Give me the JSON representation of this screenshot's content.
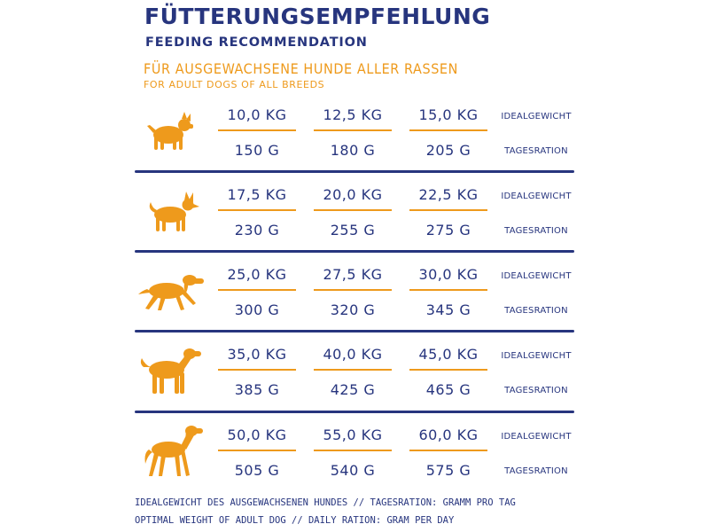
{
  "header": {
    "title": "FÜTTERUNGSEMPFEHLUNG",
    "subtitle": "FEEDING RECOMMENDATION",
    "intro_de": "FÜR AUSGEWACHSENE HUNDE ALLER RASSEN",
    "intro_en": "FOR ADULT DOGS OF ALL BREEDS"
  },
  "labels": {
    "weight": "IDEALGEWICHT",
    "ration": "TAGESRATION"
  },
  "colors": {
    "navy": "#27357e",
    "orange": "#ee9a1c"
  },
  "rows": [
    {
      "icon": "small-dog-icon",
      "weights": [
        "10,0 KG",
        "12,5 KG",
        "15,0 KG"
      ],
      "rations": [
        "150 G",
        "180 G",
        "205 G"
      ]
    },
    {
      "icon": "medium-dog-icon",
      "weights": [
        "17,5 KG",
        "20,0 KG",
        "22,5 KG"
      ],
      "rations": [
        "230 G",
        "255 G",
        "275 G"
      ]
    },
    {
      "icon": "setter-dog-icon",
      "weights": [
        "25,0 KG",
        "27,5 KG",
        "30,0 KG"
      ],
      "rations": [
        "300 G",
        "320 G",
        "345 G"
      ]
    },
    {
      "icon": "retriever-dog-icon",
      "weights": [
        "35,0 KG",
        "40,0 KG",
        "45,0 KG"
      ],
      "rations": [
        "385 G",
        "425 G",
        "465 G"
      ]
    },
    {
      "icon": "large-dog-icon",
      "weights": [
        "50,0 KG",
        "55,0 KG",
        "60,0 KG"
      ],
      "rations": [
        "505 G",
        "540 G",
        "575 G"
      ]
    }
  ],
  "footer": {
    "line_de": "IDEALGEWICHT DES AUSGEWACHSENEN HUNDES // TAGESRATION: GRAMM PRO TAG",
    "line_en": "OPTIMAL WEIGHT OF ADULT DOG // DAILY RATION: GRAM PER DAY"
  }
}
